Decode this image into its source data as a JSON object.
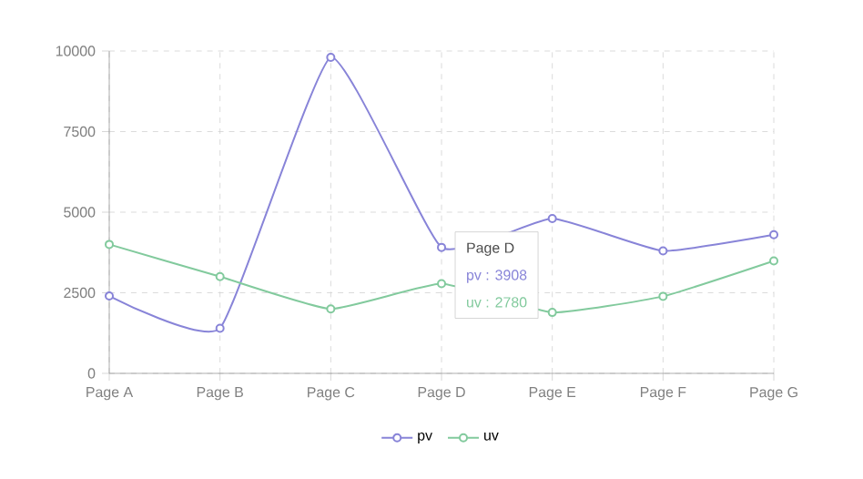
{
  "chart_data": {
    "type": "line",
    "categories": [
      "Page A",
      "Page B",
      "Page C",
      "Page D",
      "Page E",
      "Page F",
      "Page G"
    ],
    "series": [
      {
        "name": "pv",
        "color": "#8884d8",
        "values": [
          2400,
          1400,
          9800,
          3908,
          4800,
          3800,
          4300
        ]
      },
      {
        "name": "uv",
        "color": "#82ca9d",
        "values": [
          4000,
          3000,
          2000,
          2780,
          1890,
          2390,
          3490
        ]
      }
    ],
    "ylim": [
      0,
      10000
    ],
    "yticks": [
      0,
      2500,
      5000,
      7500,
      10000
    ],
    "grid": true,
    "legend": "bottom",
    "marker": "circle",
    "line_style": "solid",
    "annotations": [
      "Page D",
      "pv : 3908",
      "uv : 2780"
    ]
  }
}
